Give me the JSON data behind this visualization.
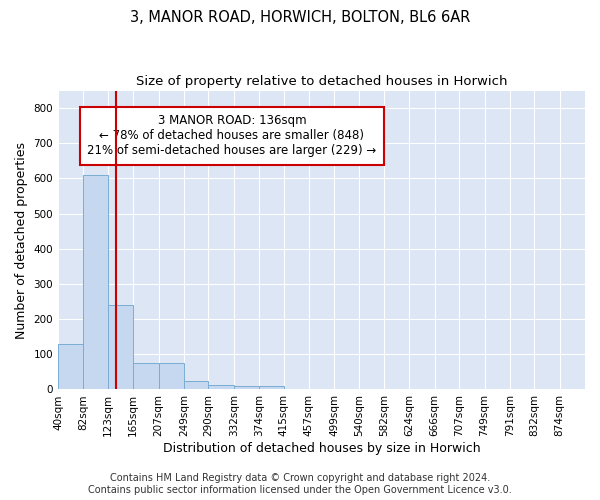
{
  "title_line1": "3, MANOR ROAD, HORWICH, BOLTON, BL6 6AR",
  "title_line2": "Size of property relative to detached houses in Horwich",
  "xlabel": "Distribution of detached houses by size in Horwich",
  "ylabel": "Number of detached properties",
  "footer_line1": "Contains HM Land Registry data © Crown copyright and database right 2024.",
  "footer_line2": "Contains public sector information licensed under the Open Government Licence v3.0.",
  "bin_edges": [
    40,
    82,
    123,
    165,
    207,
    249,
    290,
    332,
    374,
    415,
    457,
    499,
    540,
    582,
    624,
    666,
    707,
    749,
    791,
    832,
    874
  ],
  "bar_heights": [
    130,
    610,
    240,
    75,
    75,
    23,
    12,
    10,
    10,
    0,
    0,
    0,
    0,
    0,
    0,
    0,
    0,
    0,
    0,
    0
  ],
  "bar_color": "#c5d8ef",
  "bar_edge_color": "#7aadd4",
  "property_size": 136,
  "vline_color": "#cc0000",
  "annotation_line1": "3 MANOR ROAD: 136sqm",
  "annotation_line2": "← 78% of detached houses are smaller (848)",
  "annotation_line3": "21% of semi-detached houses are larger (229) →",
  "annotation_box_color": "#ffffff",
  "annotation_box_edge_color": "#cc0000",
  "ylim": [
    0,
    850
  ],
  "yticks": [
    0,
    100,
    200,
    300,
    400,
    500,
    600,
    700,
    800
  ],
  "background_color": "#dce6f5",
  "grid_color": "#ffffff",
  "title_fontsize": 10.5,
  "subtitle_fontsize": 9.5,
  "axis_label_fontsize": 9,
  "tick_fontsize": 7.5,
  "annotation_fontsize": 8.5,
  "footer_fontsize": 7
}
